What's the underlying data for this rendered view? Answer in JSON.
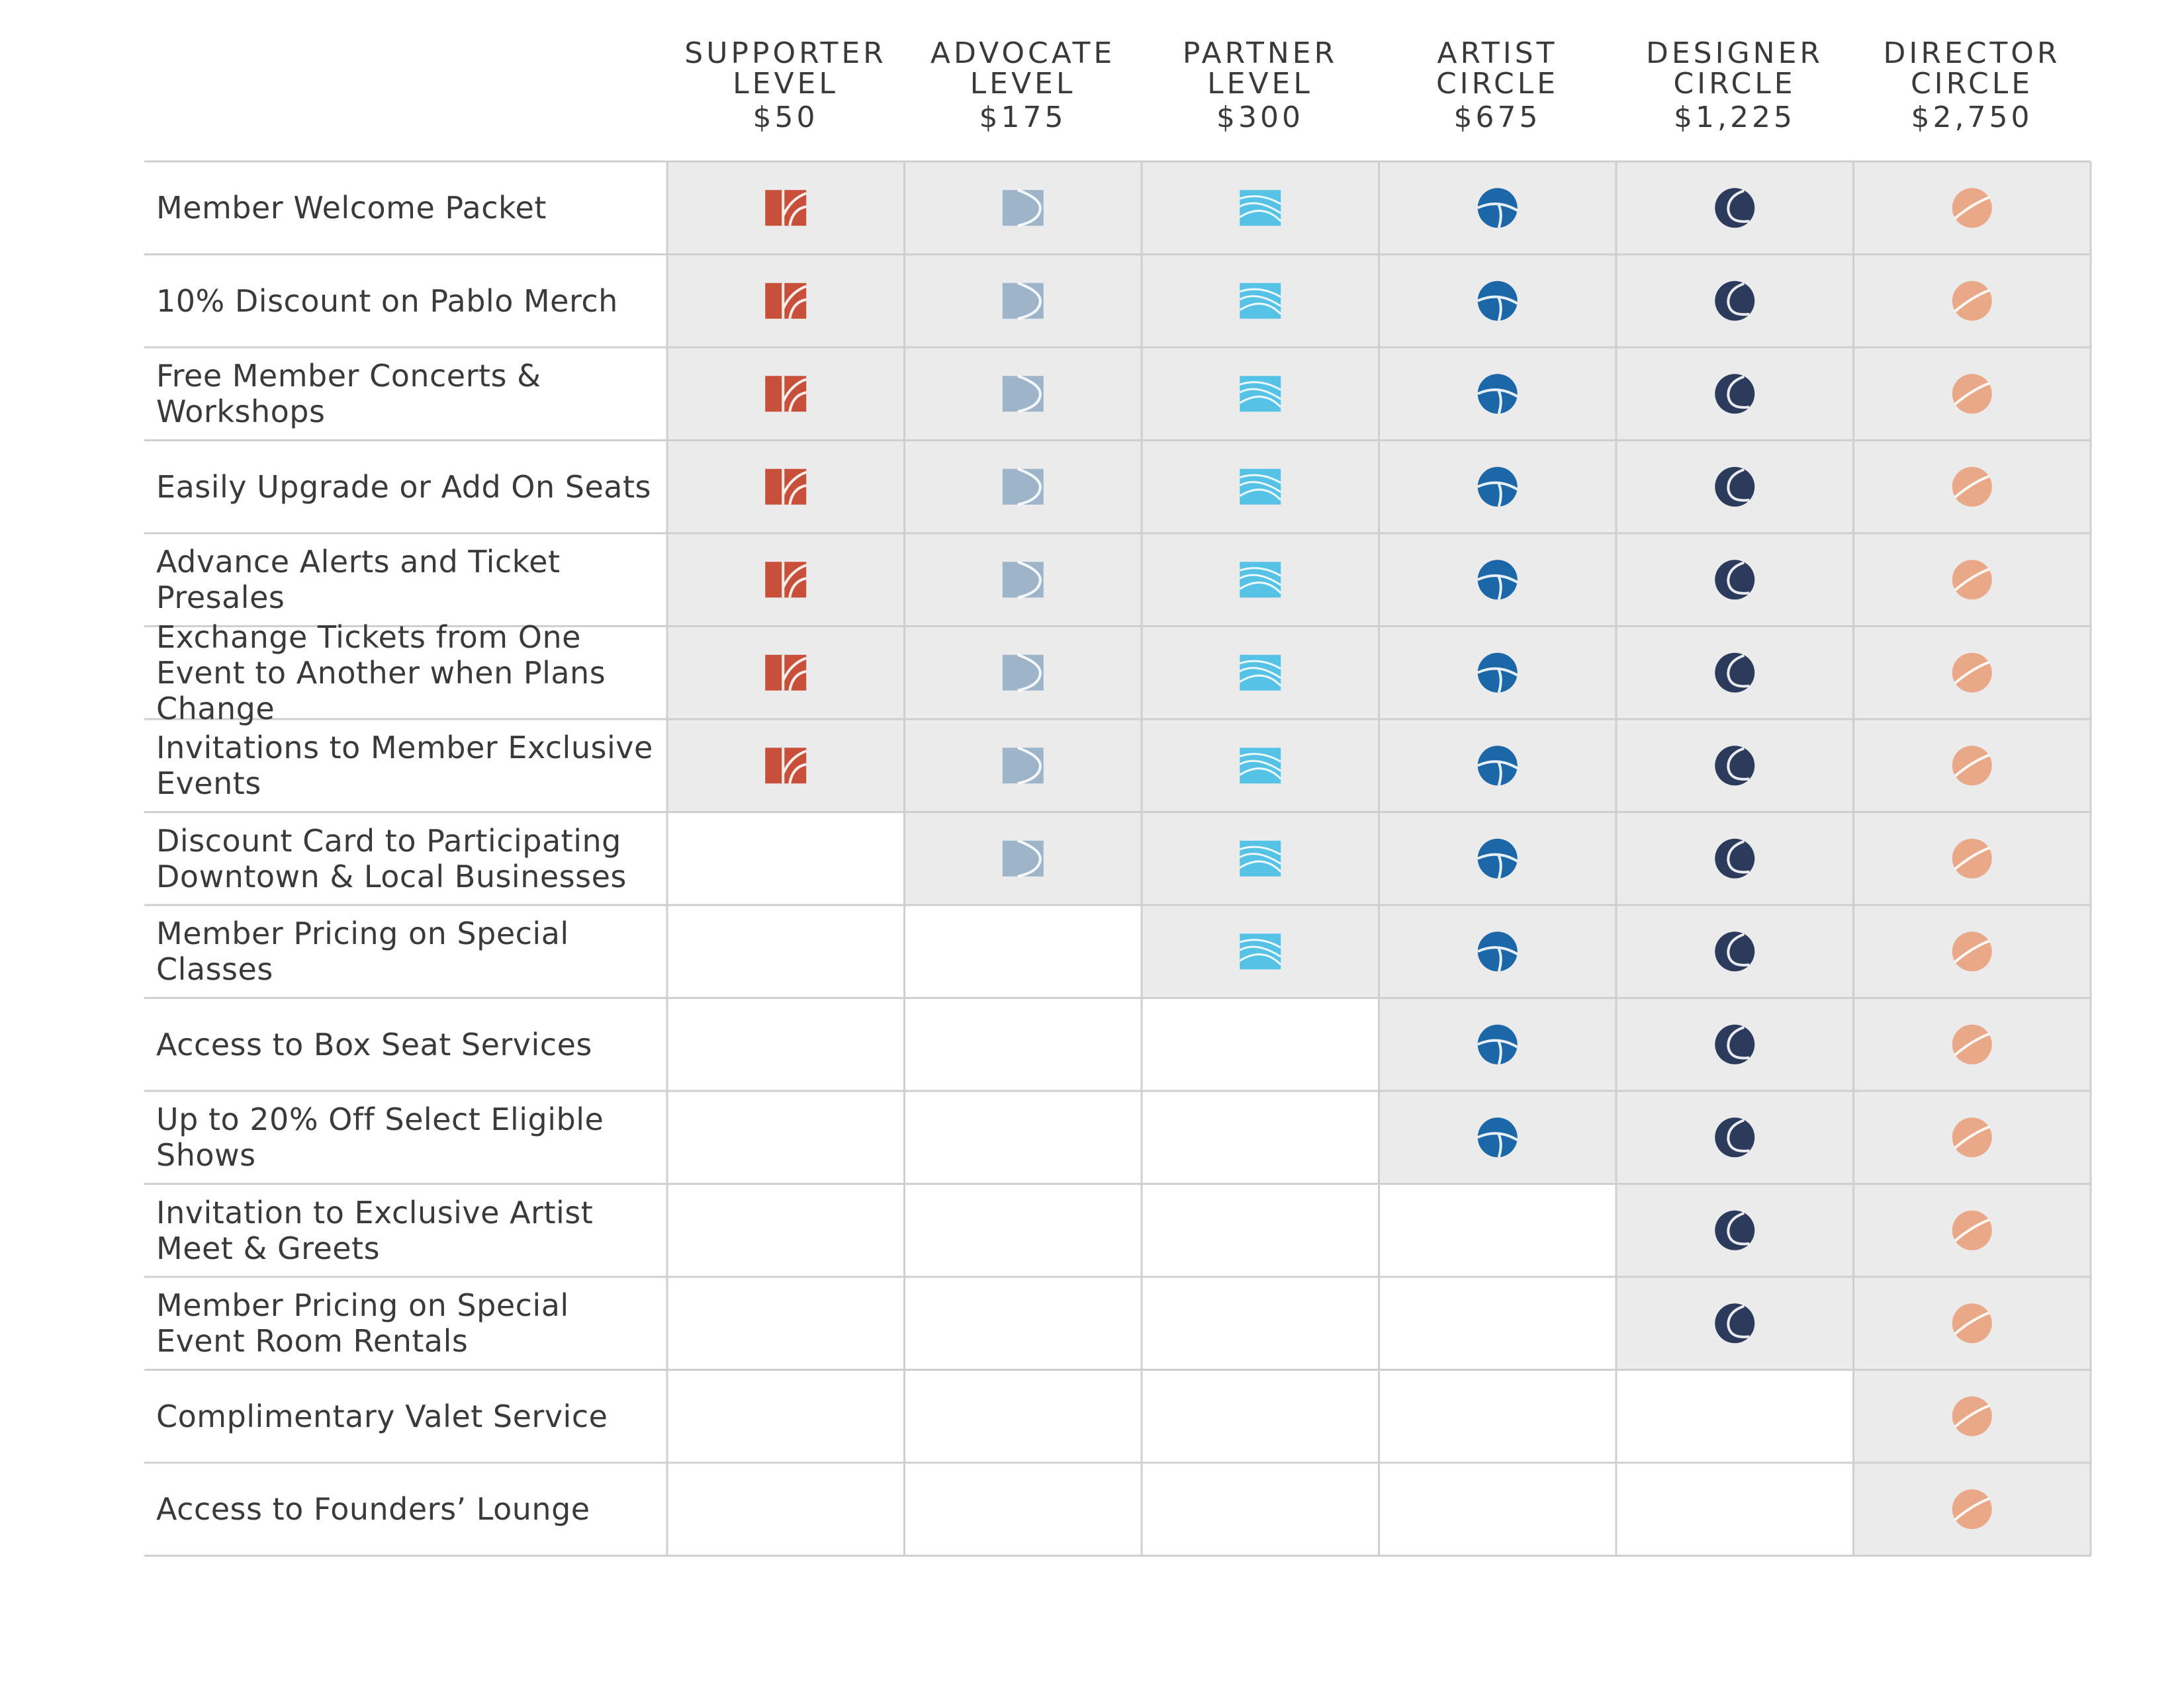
{
  "tiers": [
    {
      "line1": "SUPPORTER",
      "line2": "LEVEL",
      "price": "$50",
      "icon": "supporter-icon",
      "color": "#c8503a"
    },
    {
      "line1": "ADVOCATE",
      "line2": "LEVEL",
      "price": "$175",
      "icon": "advocate-icon",
      "color": "#9db4c9"
    },
    {
      "line1": "PARTNER",
      "line2": "LEVEL",
      "price": "$300",
      "icon": "partner-icon",
      "color": "#56c3e6"
    },
    {
      "line1": "ARTIST",
      "line2": "CIRCLE",
      "price": "$675",
      "icon": "artist-icon",
      "color": "#1c67a8"
    },
    {
      "line1": "DESIGNER",
      "line2": "CIRCLE",
      "price": "$1,225",
      "icon": "designer-icon",
      "color": "#2c3a5c"
    },
    {
      "line1": "DIRECTOR",
      "line2": "CIRCLE",
      "price": "$2,750",
      "icon": "director-icon",
      "color": "#e9a887"
    }
  ],
  "benefits": [
    {
      "label": "Member Welcome Packet",
      "from_tier": 0
    },
    {
      "label": "10% Discount on Pablo Merch",
      "from_tier": 0
    },
    {
      "label": "Free Member Concerts & Workshops",
      "from_tier": 0
    },
    {
      "label": "Easily Upgrade or Add On Seats",
      "from_tier": 0
    },
    {
      "label": "Advance Alerts and Ticket Presales",
      "from_tier": 0
    },
    {
      "label": "Exchange Tickets from One Event to Another when Plans Change",
      "from_tier": 0
    },
    {
      "label": "Invitations to Member Exclusive Events",
      "from_tier": 0
    },
    {
      "label": "Discount Card to Participating Downtown & Local Businesses",
      "from_tier": 1
    },
    {
      "label": "Member Pricing on Special Classes",
      "from_tier": 2
    },
    {
      "label": "Access to Box Seat Services",
      "from_tier": 3
    },
    {
      "label": "Up to 20% Off Select Eligible Shows",
      "from_tier": 3
    },
    {
      "label": "Invitation to Exclusive Artist Meet & Greets",
      "from_tier": 4
    },
    {
      "label": "Member Pricing on Special Event Room Rentals",
      "from_tier": 4
    },
    {
      "label": "Complimentary Valet Service",
      "from_tier": 5
    },
    {
      "label": "Access to Founders’ Lounge",
      "from_tier": 5
    }
  ],
  "colors": {
    "shade": "#ebebec",
    "grid": "#cfcfd1",
    "text": "#3a3a3c"
  }
}
